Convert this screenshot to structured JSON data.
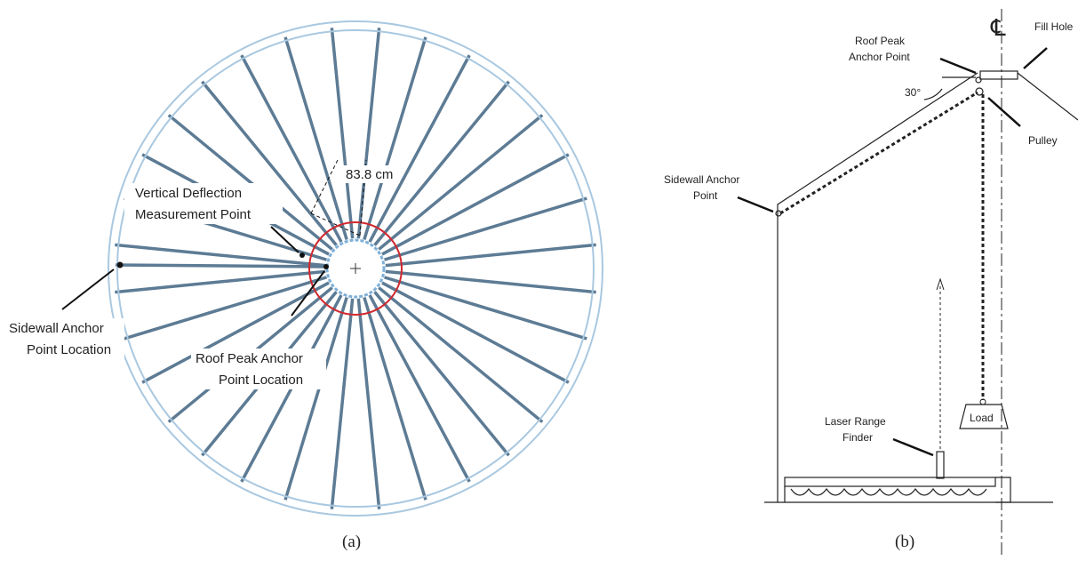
{
  "panel_a": {
    "dimension": "83.8 cm",
    "deflection_label": [
      "Vertical Deflection",
      "Measurement Point"
    ],
    "sidewall_label": [
      "Sidewall Anchor",
      "Point Location"
    ],
    "roof_peak_label": [
      "Roof Peak  Anchor",
      "Point Location"
    ],
    "caption": "(a)"
  },
  "panel_b": {
    "centerline": "℄",
    "fill_hole": "Fill Hole",
    "roof_peak_label": [
      "Roof Peak",
      "Anchor Point"
    ],
    "angle": "30°",
    "pulley": "Pulley",
    "sidewall_label": [
      "Sidewall Anchor",
      "Point"
    ],
    "laser_label": [
      "Laser Range",
      "Finder"
    ],
    "load": "Load",
    "caption": "(b)"
  }
}
